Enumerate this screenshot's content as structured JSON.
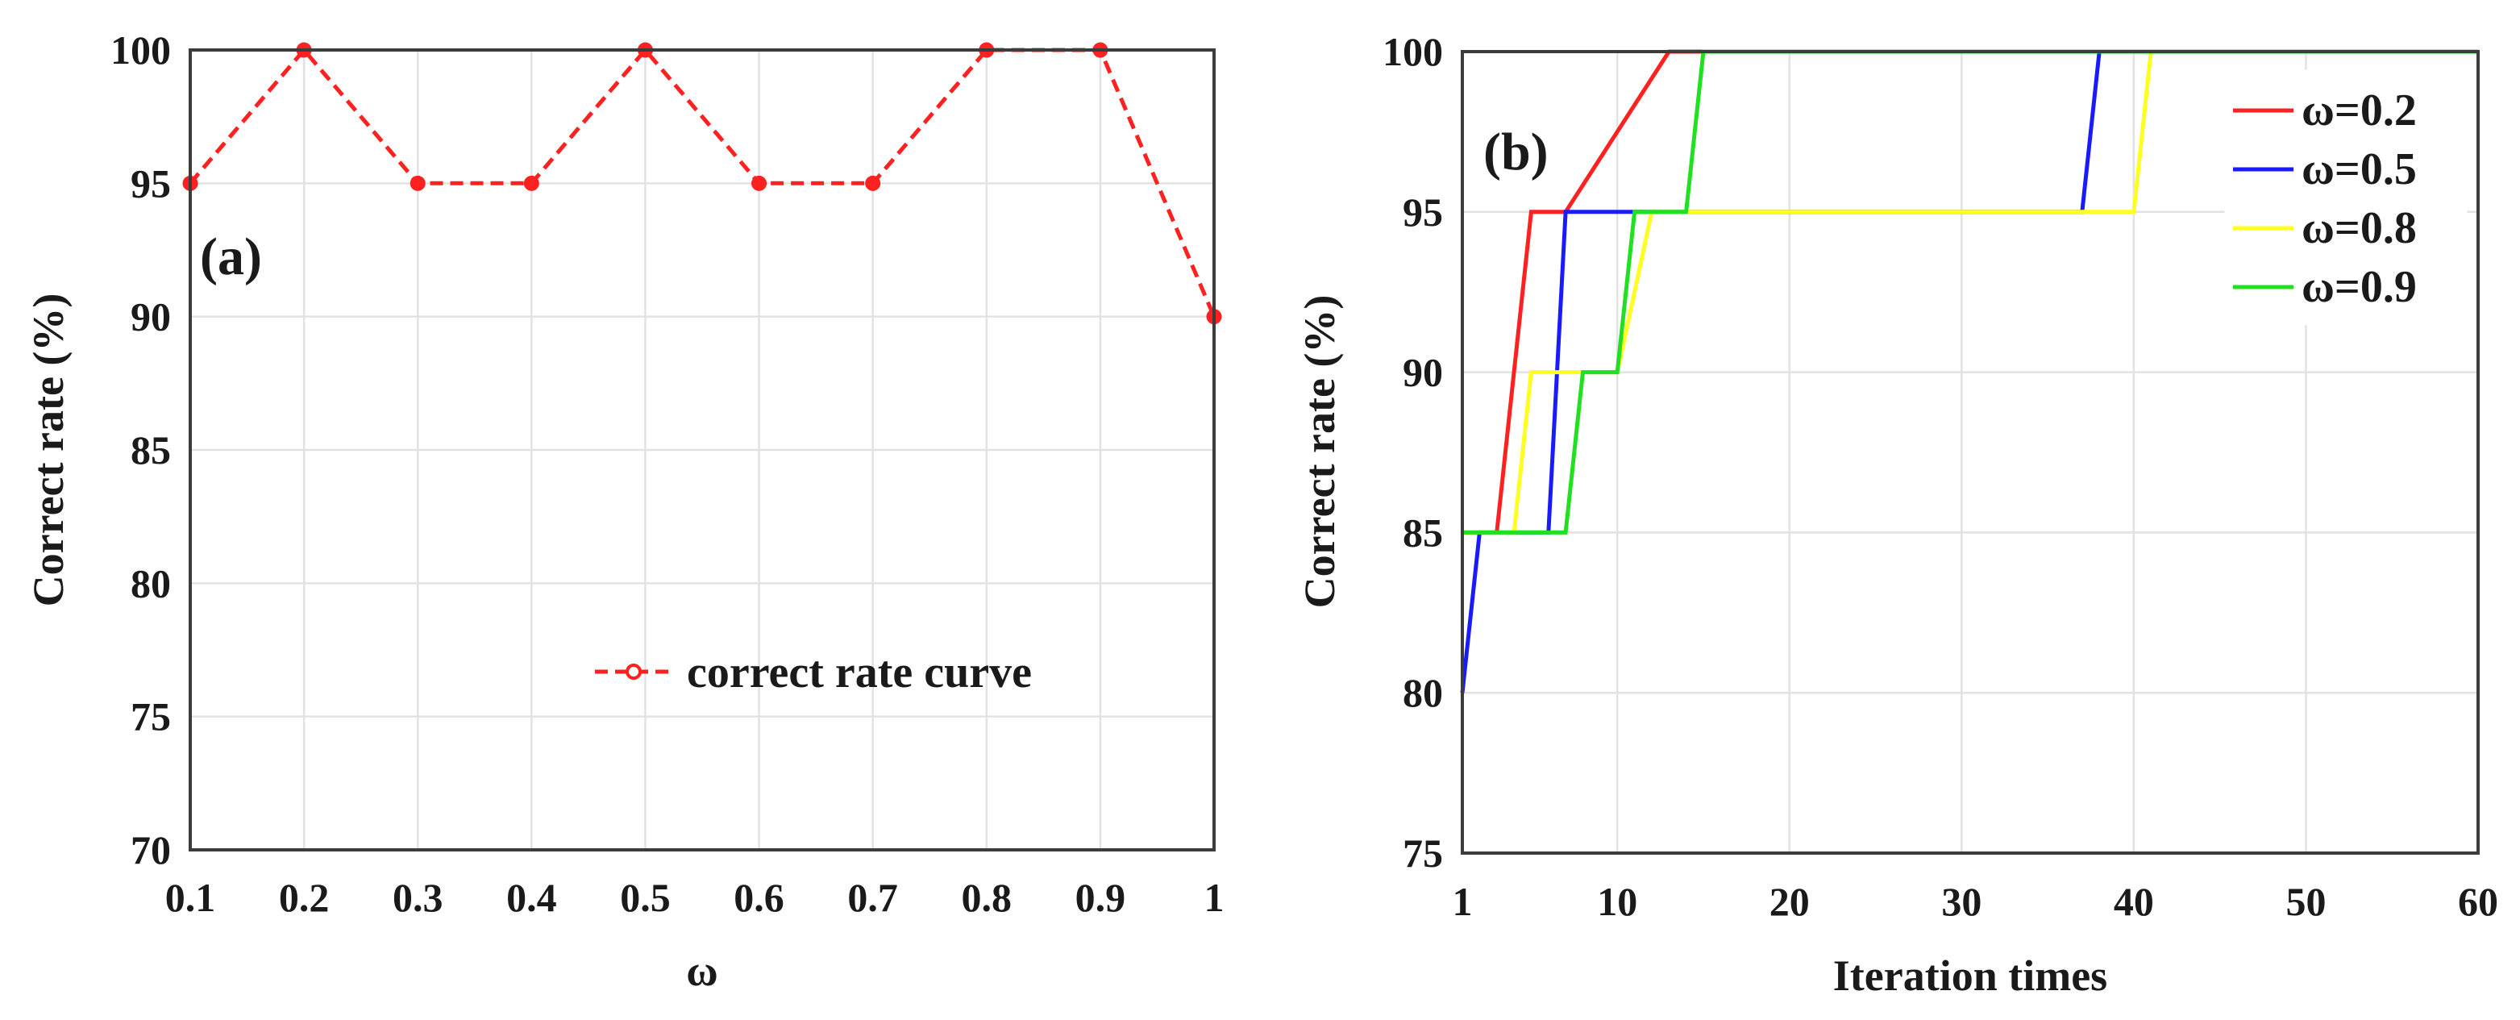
{
  "chart_data": [
    {
      "type": "line",
      "panel_label": "(a)",
      "xlabel": "ω",
      "ylabel": "Correct rate (%)",
      "xlim": [
        0.1,
        1.0
      ],
      "ylim": [
        70,
        100
      ],
      "x_ticks": [
        0.1,
        0.2,
        0.3,
        0.4,
        0.5,
        0.6,
        0.7,
        0.8,
        0.9,
        1.0
      ],
      "x_tick_labels": [
        "0.1",
        "0.2",
        "0.3",
        "0.4",
        "0.5",
        "0.6",
        "0.7",
        "0.8",
        "0.9",
        "1"
      ],
      "y_ticks": [
        70,
        75,
        80,
        85,
        90,
        95,
        100
      ],
      "y_tick_labels": [
        "70",
        "75",
        "80",
        "85",
        "90",
        "95",
        "100"
      ],
      "grid": true,
      "legend_position": "lower-right",
      "series": [
        {
          "name": "correct rate curve",
          "color": "#ff2020",
          "line_style": "dashed",
          "marker": "circle",
          "x": [
            0.1,
            0.2,
            0.3,
            0.4,
            0.5,
            0.6,
            0.7,
            0.8,
            0.9,
            1.0
          ],
          "y": [
            95,
            100,
            95,
            95,
            100,
            95,
            95,
            100,
            100,
            90
          ]
        }
      ]
    },
    {
      "type": "line",
      "panel_label": "(b)",
      "xlabel": "Iteration times",
      "ylabel": "Correct rate (%)",
      "xlim": [
        1,
        60
      ],
      "ylim": [
        75,
        100
      ],
      "x_ticks": [
        1,
        10,
        20,
        30,
        40,
        50,
        60
      ],
      "x_tick_labels": [
        "1",
        "10",
        "20",
        "30",
        "40",
        "50",
        "60"
      ],
      "y_ticks": [
        75,
        80,
        85,
        90,
        95,
        100
      ],
      "y_tick_labels": [
        "75",
        "80",
        "85",
        "90",
        "95",
        "100"
      ],
      "grid": true,
      "legend_position": "top-right",
      "series": [
        {
          "name": "ω=0.2",
          "color": "#ff2020",
          "x": [
            1,
            3,
            5,
            7,
            13,
            60
          ],
          "y": [
            85,
            85,
            95,
            95,
            100,
            100
          ]
        },
        {
          "name": "ω=0.5",
          "color": "#1a1aff",
          "x": [
            1,
            2,
            6,
            7,
            11,
            37,
            38,
            60
          ],
          "y": [
            80,
            85,
            85,
            95,
            95,
            95,
            100,
            100
          ]
        },
        {
          "name": "ω=0.8",
          "color": "#ffff20",
          "x": [
            1,
            4,
            5,
            10,
            12,
            40,
            41,
            60
          ],
          "y": [
            85,
            85,
            90,
            90,
            95,
            95,
            100,
            100
          ]
        },
        {
          "name": "ω=0.9",
          "color": "#20e020",
          "x": [
            1,
            7,
            8,
            10,
            11,
            14,
            15,
            60
          ],
          "y": [
            85,
            85,
            90,
            90,
            95,
            95,
            100,
            100
          ]
        }
      ]
    }
  ]
}
